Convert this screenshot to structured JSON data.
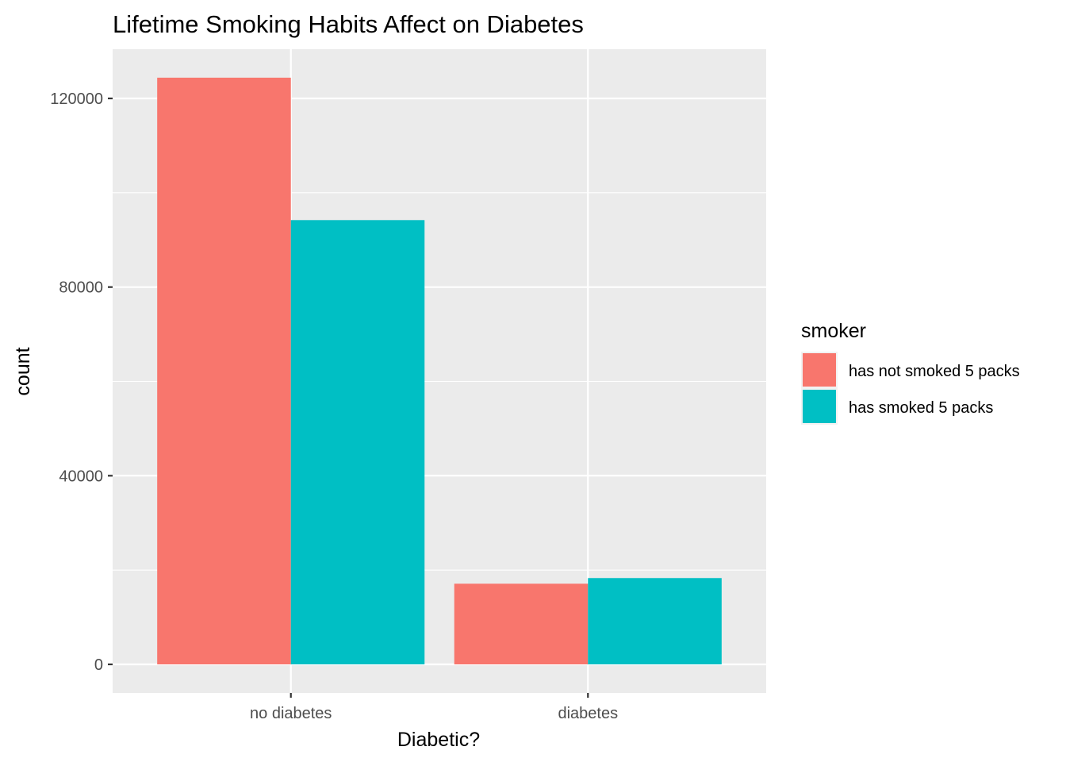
{
  "chart_data": {
    "type": "bar",
    "title": "Lifetime Smoking Habits Affect on Diabetes",
    "xlabel": "Diabetic?",
    "ylabel": "count",
    "categories": [
      "no diabetes",
      "diabetes"
    ],
    "series": [
      {
        "name": "has not smoked 5 packs",
        "color": "#F8766D",
        "values": [
          124400,
          17100
        ]
      },
      {
        "name": "has smoked 5 packs",
        "color": "#00BFC4",
        "values": [
          94200,
          18300
        ]
      }
    ],
    "ylim": [
      0,
      130000
    ],
    "yticks": [
      0,
      40000,
      80000,
      120000
    ],
    "ytick_labels": [
      "0",
      "40000",
      "80000",
      "120000"
    ],
    "grid": true,
    "legend": {
      "title": "smoker",
      "position": "right"
    },
    "panel_color": "#EBEBEB",
    "grid_color": "#FFFFFF"
  }
}
